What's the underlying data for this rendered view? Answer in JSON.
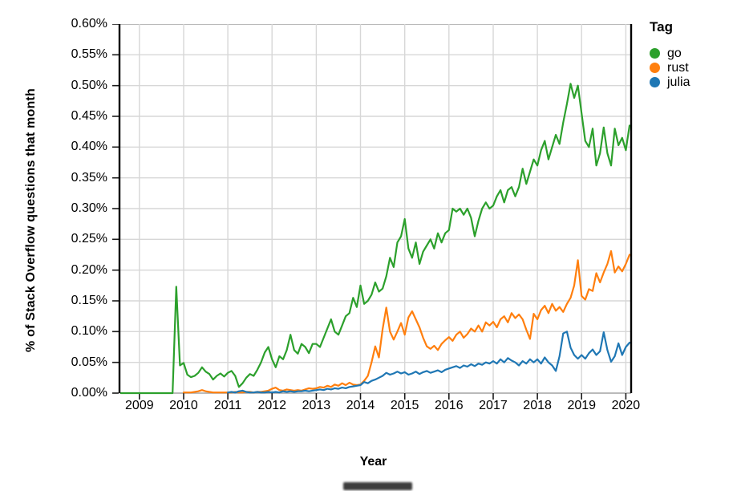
{
  "chart_data": {
    "type": "line",
    "title": "",
    "xlabel": "Year",
    "ylabel": "% of Stack Overflow questions that month",
    "legend_title": "Tag",
    "legend_position": "right-top",
    "grid": true,
    "x_unit": "month",
    "x_domain": [
      2008.55,
      2020.12
    ],
    "y_domain": [
      0,
      0.6
    ],
    "y_step": 0.05,
    "x_ticks": [
      "2009",
      "2010",
      "2011",
      "2012",
      "2013",
      "2014",
      "2015",
      "2016",
      "2017",
      "2018",
      "2019",
      "2020"
    ],
    "y_ticks": [
      "0.60%",
      "0.55%",
      "0.50%",
      "0.45%",
      "0.40%",
      "0.35%",
      "0.30%",
      "0.25%",
      "0.20%",
      "0.15%",
      "0.10%",
      "0.05%",
      "0.00%"
    ],
    "series": [
      {
        "name": "go",
        "color": "#2ca02c",
        "start": "2008-08",
        "values": [
          0,
          0,
          0,
          0,
          0,
          0,
          0,
          0,
          0,
          0,
          0,
          0,
          0,
          0,
          0,
          0.173,
          0.045,
          0.049,
          0.03,
          0.026,
          0.028,
          0.033,
          0.042,
          0.035,
          0.031,
          0.022,
          0.028,
          0.032,
          0.027,
          0.033,
          0.036,
          0.028,
          0.01,
          0.016,
          0.025,
          0.031,
          0.028,
          0.038,
          0.05,
          0.066,
          0.075,
          0.055,
          0.042,
          0.06,
          0.055,
          0.07,
          0.095,
          0.07,
          0.064,
          0.08,
          0.075,
          0.065,
          0.08,
          0.08,
          0.075,
          0.09,
          0.105,
          0.12,
          0.1,
          0.095,
          0.11,
          0.125,
          0.13,
          0.155,
          0.14,
          0.175,
          0.145,
          0.15,
          0.16,
          0.18,
          0.165,
          0.17,
          0.19,
          0.22,
          0.205,
          0.245,
          0.255,
          0.283,
          0.235,
          0.22,
          0.245,
          0.21,
          0.23,
          0.24,
          0.25,
          0.235,
          0.26,
          0.245,
          0.26,
          0.265,
          0.3,
          0.295,
          0.3,
          0.29,
          0.3,
          0.285,
          0.255,
          0.28,
          0.3,
          0.31,
          0.3,
          0.305,
          0.32,
          0.33,
          0.31,
          0.33,
          0.335,
          0.32,
          0.335,
          0.365,
          0.34,
          0.36,
          0.38,
          0.37,
          0.395,
          0.41,
          0.38,
          0.4,
          0.42,
          0.405,
          0.44,
          0.47,
          0.503,
          0.48,
          0.5,
          0.455,
          0.41,
          0.4,
          0.43,
          0.37,
          0.39,
          0.432,
          0.39,
          0.37,
          0.43,
          0.403,
          0.415,
          0.395,
          0.435
        ]
      },
      {
        "name": "rust",
        "color": "#ff7f0e",
        "start": "2010-01",
        "values": [
          0.001,
          0.001,
          0.001,
          0.002,
          0.003,
          0.005,
          0.003,
          0.002,
          0.001,
          0.001,
          0.001,
          0.001,
          0.001,
          0.001,
          0.002,
          0.001,
          0.001,
          0.002,
          0.002,
          0.001,
          0.002,
          0.002,
          0.003,
          0.004,
          0.007,
          0.009,
          0.005,
          0.004,
          0.006,
          0.005,
          0.004,
          0.005,
          0.004,
          0.006,
          0.008,
          0.007,
          0.008,
          0.01,
          0.009,
          0.012,
          0.01,
          0.014,
          0.012,
          0.016,
          0.013,
          0.017,
          0.014,
          0.013,
          0.014,
          0.02,
          0.028,
          0.05,
          0.076,
          0.058,
          0.104,
          0.139,
          0.1,
          0.087,
          0.1,
          0.114,
          0.095,
          0.123,
          0.133,
          0.12,
          0.107,
          0.09,
          0.076,
          0.072,
          0.077,
          0.07,
          0.08,
          0.086,
          0.091,
          0.085,
          0.095,
          0.1,
          0.09,
          0.096,
          0.105,
          0.1,
          0.11,
          0.1,
          0.115,
          0.11,
          0.116,
          0.107,
          0.12,
          0.125,
          0.115,
          0.13,
          0.122,
          0.128,
          0.12,
          0.103,
          0.088,
          0.129,
          0.12,
          0.135,
          0.142,
          0.13,
          0.145,
          0.134,
          0.14,
          0.132,
          0.145,
          0.155,
          0.175,
          0.216,
          0.158,
          0.152,
          0.169,
          0.166,
          0.195,
          0.18,
          0.196,
          0.21,
          0.231,
          0.196,
          0.206,
          0.198,
          0.21,
          0.225
        ]
      },
      {
        "name": "julia",
        "color": "#1f77b4",
        "start": "2011-01",
        "values": [
          0.001,
          0.002,
          0.001,
          0.003,
          0.004,
          0.002,
          0.001,
          0.001,
          0.002,
          0.001,
          0.001,
          0.002,
          0.001,
          0.002,
          0.001,
          0.003,
          0.002,
          0.003,
          0.002,
          0.003,
          0.003,
          0.004,
          0.003,
          0.004,
          0.005,
          0.006,
          0.005,
          0.007,
          0.006,
          0.008,
          0.007,
          0.009,
          0.008,
          0.01,
          0.011,
          0.012,
          0.013,
          0.018,
          0.016,
          0.02,
          0.022,
          0.025,
          0.028,
          0.033,
          0.03,
          0.032,
          0.035,
          0.032,
          0.034,
          0.03,
          0.032,
          0.035,
          0.031,
          0.034,
          0.036,
          0.033,
          0.035,
          0.037,
          0.034,
          0.038,
          0.04,
          0.042,
          0.044,
          0.041,
          0.045,
          0.043,
          0.047,
          0.044,
          0.048,
          0.046,
          0.05,
          0.048,
          0.052,
          0.048,
          0.055,
          0.05,
          0.057,
          0.053,
          0.05,
          0.045,
          0.052,
          0.048,
          0.055,
          0.05,
          0.055,
          0.048,
          0.058,
          0.05,
          0.045,
          0.036,
          0.06,
          0.097,
          0.1,
          0.074,
          0.062,
          0.056,
          0.062,
          0.056,
          0.065,
          0.071,
          0.062,
          0.068,
          0.099,
          0.07,
          0.051,
          0.06,
          0.081,
          0.062,
          0.075,
          0.082
        ]
      }
    ],
    "style": {
      "grid_color": "#d7d7d7",
      "frame_gray": "#a3a3a3",
      "axis_black": "#000000",
      "tick_color": "#1a1a1a"
    }
  }
}
